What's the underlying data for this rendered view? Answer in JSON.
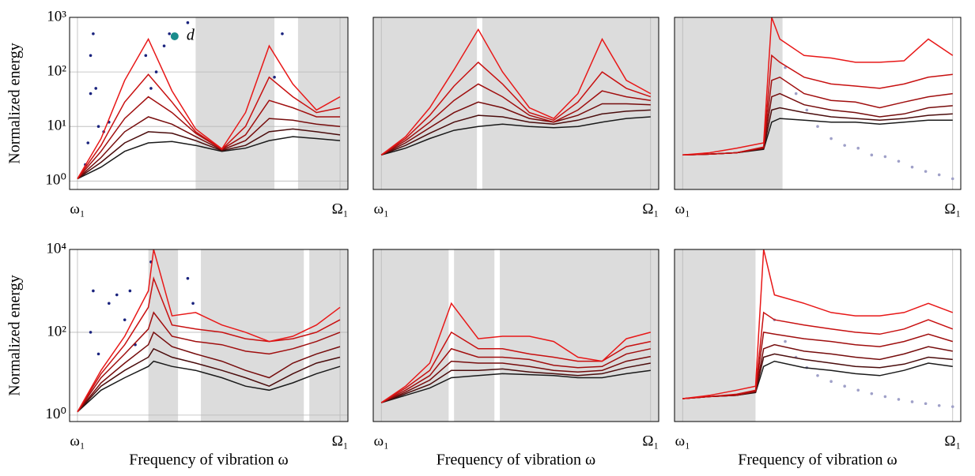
{
  "chart_data": [
    {
      "type": "line",
      "log_y": true,
      "ylabel": "Normalized energy",
      "ylim": [
        0.7,
        1000
      ],
      "yticks": [
        {
          "value": 1,
          "label": "10⁰"
        },
        {
          "value": 10,
          "label": "10¹"
        },
        {
          "value": 100,
          "label": "10²"
        },
        {
          "value": 1000,
          "label": "10³"
        }
      ],
      "xlim": [
        -0.03,
        1.03
      ],
      "xticks": [
        {
          "value": 0,
          "label": "ω₁"
        },
        {
          "value": 1,
          "label": "Ω₁"
        }
      ],
      "shaded": [
        [
          0.45,
          0.75
        ],
        [
          0.84,
          1.03
        ]
      ],
      "x": [
        0,
        0.09,
        0.18,
        0.27,
        0.36,
        0.45,
        0.55,
        0.64,
        0.73,
        0.82,
        0.91,
        1.0
      ],
      "series": [
        {
          "color": "#1a1a1a",
          "values": [
            1.1,
            1.8,
            3.5,
            5,
            5.3,
            4.5,
            3.5,
            4,
            5.5,
            6.5,
            6,
            5.5
          ]
        },
        {
          "color": "#4a0c0c",
          "values": [
            1.1,
            2.2,
            5,
            8,
            7.5,
            5.5,
            3.6,
            4.5,
            8,
            9,
            8,
            7
          ]
        },
        {
          "color": "#760c0c",
          "values": [
            1.1,
            2.7,
            8,
            15,
            11,
            6.5,
            3.7,
            5.5,
            14,
            13,
            11,
            10
          ]
        },
        {
          "color": "#a00e0e",
          "values": [
            1.1,
            3.5,
            14,
            35,
            18,
            7.5,
            3.8,
            7,
            30,
            22,
            15,
            15
          ]
        },
        {
          "color": "#c81010",
          "values": [
            1.1,
            4.5,
            28,
            90,
            28,
            8,
            3.8,
            10,
            80,
            35,
            18,
            22
          ]
        },
        {
          "color": "#e81818",
          "values": [
            1.1,
            6,
            70,
            400,
            45,
            9,
            3.9,
            18,
            300,
            60,
            20,
            35
          ]
        }
      ],
      "scatter": {
        "color": "#1a237e",
        "x": [
          0.03,
          0.04,
          0.05,
          0.05,
          0.06,
          0.07,
          0.08,
          0.1,
          0.12,
          0.26,
          0.28,
          0.3,
          0.33,
          0.35,
          0.42,
          0.75,
          0.78
        ],
        "y": [
          2,
          5,
          40,
          200,
          500,
          50,
          10,
          8,
          12,
          200,
          50,
          100,
          300,
          500,
          800,
          80,
          500
        ]
      },
      "annotation": {
        "text": "d",
        "x": 0.37,
        "y": 450,
        "color": "#1a8c8c"
      }
    },
    {
      "type": "line",
      "log_y": true,
      "ylim": [
        0.7,
        1000
      ],
      "xlim": [
        -0.03,
        1.03
      ],
      "xticks": [
        {
          "value": 0,
          "label": "ω₁"
        },
        {
          "value": 1,
          "label": "Ω₁"
        }
      ],
      "shaded": [
        [
          -0.03,
          0.355
        ],
        [
          0.375,
          1.03
        ]
      ],
      "x": [
        0,
        0.09,
        0.18,
        0.27,
        0.36,
        0.45,
        0.55,
        0.64,
        0.73,
        0.82,
        0.91,
        1.0
      ],
      "series": [
        {
          "color": "#1a1a1a",
          "values": [
            3,
            4,
            6,
            8.5,
            10,
            11,
            10,
            9.5,
            10,
            12,
            14,
            15
          ]
        },
        {
          "color": "#4a0c0c",
          "values": [
            3,
            4.5,
            7.5,
            12,
            16,
            15,
            12,
            11,
            13,
            17,
            19,
            20
          ]
        },
        {
          "color": "#760c0c",
          "values": [
            3,
            5,
            9.5,
            18,
            28,
            22,
            14,
            12,
            16,
            26,
            26,
            25
          ]
        },
        {
          "color": "#a00e0e",
          "values": [
            3,
            5.5,
            12,
            30,
            60,
            35,
            16,
            12,
            20,
            45,
            35,
            30
          ]
        },
        {
          "color": "#c81010",
          "values": [
            3,
            6,
            16,
            55,
            150,
            60,
            18,
            13,
            28,
            100,
            50,
            35
          ]
        },
        {
          "color": "#e81818",
          "values": [
            3,
            6.5,
            22,
            110,
            600,
            100,
            22,
            14,
            40,
            400,
            70,
            40
          ]
        }
      ]
    },
    {
      "type": "line",
      "log_y": true,
      "ylim": [
        0.7,
        1000
      ],
      "xlim": [
        -0.03,
        1.03
      ],
      "xticks": [
        {
          "value": 0,
          "label": "ω₁"
        },
        {
          "value": 1,
          "label": "Ω₁"
        }
      ],
      "shaded": [
        [
          -0.03,
          0.37
        ]
      ],
      "x": [
        0,
        0.1,
        0.2,
        0.3,
        0.33,
        0.36,
        0.45,
        0.55,
        0.64,
        0.73,
        0.82,
        0.91,
        1.0
      ],
      "series": [
        {
          "color": "#1a1a1a",
          "values": [
            3,
            3.1,
            3.3,
            3.8,
            12,
            14,
            13,
            12,
            12,
            11,
            12,
            13,
            13
          ]
        },
        {
          "color": "#4a0c0c",
          "values": [
            3,
            3.1,
            3.3,
            3.9,
            20,
            22,
            18,
            15,
            14,
            13,
            14,
            16,
            17
          ]
        },
        {
          "color": "#760c0c",
          "values": [
            3,
            3.1,
            3.3,
            4,
            35,
            40,
            25,
            20,
            18,
            15,
            17,
            22,
            24
          ]
        },
        {
          "color": "#a00e0e",
          "values": [
            3,
            3.1,
            3.3,
            4.1,
            70,
            80,
            40,
            30,
            28,
            22,
            28,
            35,
            40
          ]
        },
        {
          "color": "#c81010",
          "values": [
            3,
            3.1,
            3.3,
            4.2,
            200,
            150,
            80,
            60,
            55,
            50,
            60,
            80,
            90
          ]
        },
        {
          "color": "#e81818",
          "values": [
            3,
            3.3,
            4,
            5,
            1000,
            400,
            200,
            180,
            150,
            150,
            160,
            400,
            200
          ]
        }
      ],
      "scatter": {
        "color": "#9fa0c8",
        "x": [
          0.38,
          0.42,
          0.46,
          0.5,
          0.55,
          0.6,
          0.65,
          0.7,
          0.75,
          0.8,
          0.85,
          0.9,
          0.95,
          1.0
        ],
        "y": [
          120,
          40,
          20,
          10,
          6,
          4.5,
          4,
          3,
          2.8,
          2.3,
          1.8,
          1.5,
          1.3,
          1.1
        ]
      }
    },
    {
      "type": "line",
      "log_y": true,
      "ylabel": "Normalized energy",
      "xlabel": "Frequency of vibration ω",
      "ylim": [
        0.7,
        10000
      ],
      "yticks": [
        {
          "value": 1,
          "label": "10⁰"
        },
        {
          "value": 100,
          "label": "10²"
        },
        {
          "value": 10000,
          "label": "10⁴"
        }
      ],
      "xlim": [
        -0.03,
        1.03
      ],
      "xticks": [
        {
          "value": 0,
          "label": "ω₁"
        },
        {
          "value": 1,
          "label": "Ω₁"
        }
      ],
      "shaded": [
        [
          0.27,
          0.383
        ],
        [
          0.47,
          0.862
        ],
        [
          0.883,
          1.03
        ]
      ],
      "x": [
        0,
        0.09,
        0.18,
        0.27,
        0.29,
        0.36,
        0.45,
        0.55,
        0.64,
        0.73,
        0.82,
        0.91,
        1.0
      ],
      "series": [
        {
          "color": "#1a1a1a",
          "values": [
            1.2,
            4,
            8,
            15,
            20,
            15,
            12,
            8,
            5,
            4,
            6,
            10,
            15
          ]
        },
        {
          "color": "#4a0c0c",
          "values": [
            1.2,
            5,
            12,
            25,
            40,
            25,
            18,
            12,
            8,
            5,
            10,
            18,
            25
          ]
        },
        {
          "color": "#760c0c",
          "values": [
            1.2,
            6,
            18,
            50,
            100,
            45,
            30,
            20,
            12,
            8,
            18,
            30,
            45
          ]
        },
        {
          "color": "#a00e0e",
          "values": [
            1.2,
            8,
            30,
            120,
            300,
            80,
            60,
            50,
            35,
            30,
            40,
            60,
            100
          ]
        },
        {
          "color": "#c81010",
          "values": [
            1.2,
            10,
            50,
            400,
            2000,
            150,
            120,
            100,
            70,
            60,
            70,
            100,
            200
          ]
        },
        {
          "color": "#e81818",
          "values": [
            1.2,
            12,
            80,
            1000,
            10000,
            250,
            300,
            150,
            100,
            60,
            80,
            150,
            400
          ]
        }
      ],
      "scatter": {
        "color": "#1a237e",
        "x": [
          0.03,
          0.05,
          0.06,
          0.08,
          0.12,
          0.15,
          0.18,
          0.2,
          0.22,
          0.28,
          0.42,
          0.44
        ],
        "y": [
          2,
          100,
          1000,
          30,
          500,
          800,
          200,
          1000,
          50,
          5000,
          2000,
          500
        ]
      }
    },
    {
      "type": "line",
      "log_y": true,
      "xlabel": "Frequency of vibration ω",
      "ylim": [
        0.7,
        10000
      ],
      "xlim": [
        -0.03,
        1.03
      ],
      "xticks": [
        {
          "value": 0,
          "label": "ω₁"
        },
        {
          "value": 1,
          "label": "Ω₁"
        }
      ],
      "shaded": [
        [
          -0.03,
          0.25
        ],
        [
          0.27,
          0.42
        ],
        [
          0.44,
          1.03
        ]
      ],
      "x": [
        0,
        0.09,
        0.18,
        0.26,
        0.36,
        0.45,
        0.55,
        0.64,
        0.73,
        0.82,
        0.91,
        1.0
      ],
      "series": [
        {
          "color": "#1a1a1a",
          "values": [
            2,
            3,
            4.5,
            8,
            9,
            10,
            9.5,
            9,
            8,
            8,
            10,
            12
          ]
        },
        {
          "color": "#4a0c0c",
          "values": [
            2,
            3.3,
            5.5,
            12,
            12,
            13,
            11,
            10,
            9,
            10,
            14,
            18
          ]
        },
        {
          "color": "#760c0c",
          "values": [
            2,
            3.6,
            7,
            20,
            18,
            18,
            15,
            12,
            11,
            12,
            20,
            26
          ]
        },
        {
          "color": "#a00e0e",
          "values": [
            2,
            4,
            9,
            40,
            25,
            25,
            22,
            16,
            14,
            15,
            30,
            40
          ]
        },
        {
          "color": "#c81010",
          "values": [
            2,
            4.5,
            12,
            100,
            40,
            40,
            30,
            25,
            20,
            20,
            45,
            60
          ]
        },
        {
          "color": "#e81818",
          "values": [
            2,
            5,
            18,
            500,
            70,
            80,
            80,
            60,
            25,
            20,
            70,
            100
          ]
        }
      ]
    },
    {
      "type": "line",
      "log_y": true,
      "xlabel": "Frequency of vibration ω",
      "ylim": [
        0.7,
        10000
      ],
      "xlim": [
        -0.03,
        1.03
      ],
      "xticks": [
        {
          "value": 0,
          "label": "ω₁"
        },
        {
          "value": 1,
          "label": "Ω₁"
        }
      ],
      "shaded": [
        [
          -0.03,
          0.27
        ]
      ],
      "x": [
        0,
        0.1,
        0.2,
        0.27,
        0.3,
        0.34,
        0.45,
        0.55,
        0.64,
        0.73,
        0.82,
        0.91,
        1.0
      ],
      "series": [
        {
          "color": "#1a1a1a",
          "values": [
            2.5,
            2.8,
            3,
            3.5,
            15,
            20,
            14,
            12,
            10,
            9,
            12,
            18,
            15
          ]
        },
        {
          "color": "#4a0c0c",
          "values": [
            2.5,
            2.8,
            3,
            3.6,
            25,
            30,
            22,
            18,
            15,
            14,
            17,
            25,
            22
          ]
        },
        {
          "color": "#760c0c",
          "values": [
            2.5,
            2.8,
            3,
            3.7,
            40,
            50,
            35,
            30,
            25,
            22,
            30,
            45,
            35
          ]
        },
        {
          "color": "#a00e0e",
          "values": [
            2.5,
            2.8,
            3,
            3.8,
            100,
            90,
            70,
            60,
            50,
            45,
            60,
            90,
            60
          ]
        },
        {
          "color": "#c81010",
          "values": [
            2.5,
            2.8,
            3.2,
            4,
            300,
            200,
            150,
            120,
            100,
            90,
            120,
            200,
            120
          ]
        },
        {
          "color": "#e81818",
          "values": [
            2.5,
            3,
            4,
            5,
            10000,
            800,
            500,
            300,
            250,
            250,
            300,
            500,
            300
          ]
        }
      ],
      "scatter": {
        "color": "#9fa0c8",
        "x": [
          0.34,
          0.38,
          0.42,
          0.46,
          0.5,
          0.55,
          0.6,
          0.65,
          0.7,
          0.75,
          0.8,
          0.85,
          0.9,
          0.95,
          1.0
        ],
        "y": [
          200,
          60,
          25,
          14,
          9,
          6.5,
          5,
          4,
          3.3,
          2.8,
          2.4,
          2.1,
          1.9,
          1.7,
          1.6
        ]
      }
    }
  ]
}
